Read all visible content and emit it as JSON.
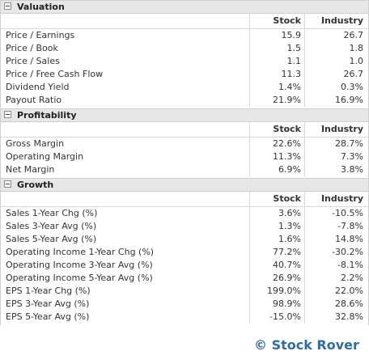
{
  "columns": {
    "stock": "Stock",
    "industry": "Industry"
  },
  "sections": [
    {
      "title": "Valuation",
      "rows": [
        {
          "label": "Price / Earnings",
          "stock": "15.9",
          "industry": "26.7"
        },
        {
          "label": "Price / Book",
          "stock": "1.5",
          "industry": "1.8"
        },
        {
          "label": "Price / Sales",
          "stock": "1.1",
          "industry": "1.0"
        },
        {
          "label": "Price / Free Cash Flow",
          "stock": "11.3",
          "industry": "26.7"
        },
        {
          "label": "Dividend Yield",
          "stock": "1.4%",
          "industry": "0.3%"
        },
        {
          "label": "Payout Ratio",
          "stock": "21.9%",
          "industry": "16.9%"
        }
      ]
    },
    {
      "title": "Profitability",
      "rows": [
        {
          "label": "Gross Margin",
          "stock": "22.6%",
          "industry": "28.7%"
        },
        {
          "label": "Operating Margin",
          "stock": "11.3%",
          "industry": "7.3%"
        },
        {
          "label": "Net Margin",
          "stock": "6.9%",
          "industry": "3.8%"
        }
      ]
    },
    {
      "title": "Growth",
      "rows": [
        {
          "label": "Sales 1-Year Chg (%)",
          "stock": "3.6%",
          "industry": "-10.5%"
        },
        {
          "label": "Sales 3-Year Avg (%)",
          "stock": "1.3%",
          "industry": "-7.8%"
        },
        {
          "label": "Sales 5-Year Avg (%)",
          "stock": "1.6%",
          "industry": "14.8%"
        },
        {
          "label": "Operating Income 1-Year Chg (%)",
          "stock": "77.2%",
          "industry": "-30.2%"
        },
        {
          "label": "Operating Income 3-Year Avg (%)",
          "stock": "40.7%",
          "industry": "-8.1%"
        },
        {
          "label": "Operating Income 5-Year Avg (%)",
          "stock": "26.9%",
          "industry": "2.2%"
        },
        {
          "label": "EPS 1-Year Chg (%)",
          "stock": "199.0%",
          "industry": "22.0%"
        },
        {
          "label": "EPS 3-Year Avg (%)",
          "stock": "98.9%",
          "industry": "28.6%"
        },
        {
          "label": "EPS 5-Year Avg (%)",
          "stock": "-15.0%",
          "industry": "32.8%"
        }
      ]
    }
  ],
  "watermark": "© Stock Rover",
  "colors": {
    "header_bg": "#e7e7e7",
    "watermark": "#2e6da4"
  }
}
